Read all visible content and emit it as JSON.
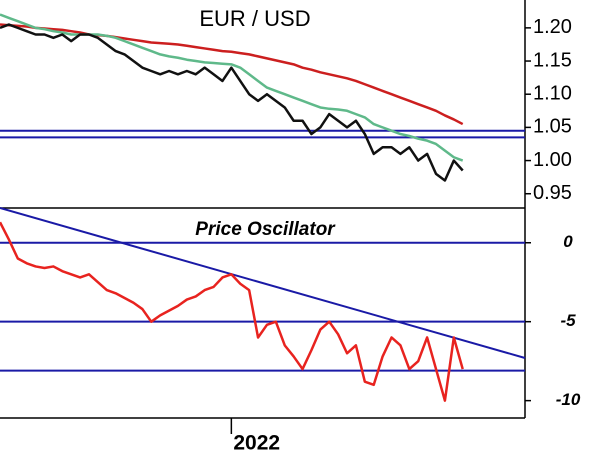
{
  "chart_data": [
    {
      "type": "line",
      "title": "EUR / USD",
      "x": [
        0,
        1,
        2,
        3,
        4,
        5,
        6,
        7,
        8,
        9,
        10,
        11,
        12,
        13,
        14,
        15,
        16,
        17,
        18,
        19,
        20,
        21,
        22,
        23,
        24,
        25,
        26,
        27,
        28,
        29,
        30,
        31,
        32,
        33,
        34,
        35,
        36,
        37,
        38,
        39,
        40,
        41,
        42,
        43,
        44,
        45,
        46,
        47,
        48,
        49,
        50,
        51,
        52
      ],
      "xlim": [
        0,
        59
      ],
      "ylim": [
        0.93,
        1.242
      ],
      "yticks": [
        {
          "value": 1.2,
          "label": "1.20"
        },
        1.15,
        {
          "value": 1.1,
          "label": "1.10"
        },
        1.05,
        {
          "value": 1,
          "label": "1.00"
        },
        0.95
      ],
      "hlines": {
        "color": "#1a1aa6",
        "values": [
          1.045,
          1.035
        ]
      },
      "series": [
        {
          "color": "#cc1f1f",
          "values": [
            1.205,
            1.204,
            1.203,
            1.202,
            1.2,
            1.199,
            1.198,
            1.197,
            1.195,
            1.193,
            1.19,
            1.189,
            1.188,
            1.186,
            1.184,
            1.182,
            1.18,
            1.178,
            1.177,
            1.176,
            1.175,
            1.173,
            1.171,
            1.169,
            1.167,
            1.165,
            1.164,
            1.162,
            1.16,
            1.157,
            1.154,
            1.151,
            1.148,
            1.145,
            1.14,
            1.137,
            1.133,
            1.13,
            1.127,
            1.124,
            1.12,
            1.115,
            1.11,
            1.105,
            1.1,
            1.095,
            1.09,
            1.085,
            1.08,
            1.075,
            1.068,
            1.062,
            1.055
          ]
        },
        {
          "color": "#5fb98a",
          "values": [
            1.22,
            1.215,
            1.21,
            1.205,
            1.2,
            1.198,
            1.195,
            1.193,
            1.19,
            1.19,
            1.19,
            1.19,
            1.188,
            1.185,
            1.18,
            1.175,
            1.17,
            1.165,
            1.16,
            1.157,
            1.155,
            1.152,
            1.15,
            1.148,
            1.147,
            1.146,
            1.145,
            1.14,
            1.13,
            1.12,
            1.11,
            1.105,
            1.1,
            1.095,
            1.09,
            1.085,
            1.08,
            1.078,
            1.077,
            1.075,
            1.07,
            1.065,
            1.055,
            1.05,
            1.045,
            1.04,
            1.037,
            1.033,
            1.03,
            1.025,
            1.015,
            1.005,
            1.0
          ]
        },
        {
          "color": "#111111",
          "values": [
            1.2,
            1.205,
            1.2,
            1.195,
            1.19,
            1.19,
            1.185,
            1.19,
            1.18,
            1.19,
            1.19,
            1.185,
            1.175,
            1.165,
            1.16,
            1.15,
            1.14,
            1.135,
            1.13,
            1.135,
            1.13,
            1.135,
            1.13,
            1.14,
            1.13,
            1.12,
            1.14,
            1.12,
            1.1,
            1.09,
            1.1,
            1.09,
            1.08,
            1.06,
            1.06,
            1.04,
            1.05,
            1.07,
            1.06,
            1.05,
            1.06,
            1.04,
            1.01,
            1.02,
            1.02,
            1.01,
            1.02,
            1.0,
            1.01,
            0.98,
            0.97,
            1.0,
            0.985
          ]
        }
      ]
    },
    {
      "type": "line",
      "title": "Price Oscillator",
      "x": [
        0,
        1,
        2,
        3,
        4,
        5,
        6,
        7,
        8,
        9,
        10,
        11,
        12,
        13,
        14,
        15,
        16,
        17,
        18,
        19,
        20,
        21,
        22,
        23,
        24,
        25,
        26,
        27,
        28,
        29,
        30,
        31,
        32,
        33,
        34,
        35,
        36,
        37,
        38,
        39,
        40,
        41,
        42,
        43,
        44,
        45,
        46,
        47,
        48,
        49,
        50,
        51,
        52
      ],
      "xlim": [
        0,
        59
      ],
      "ylim": [
        -11.1,
        2.2
      ],
      "yticks": [
        0,
        -5,
        -10
      ],
      "xticks": [
        {
          "value": 26,
          "label": "2022"
        }
      ],
      "hlines": {
        "color": "#1a1aa6",
        "values": [
          0,
          -5,
          -8.1
        ]
      },
      "trendline": {
        "color": "#1a1aa6",
        "x": [
          0,
          59
        ],
        "values": [
          2.2,
          -7.3
        ]
      },
      "series": [
        {
          "color": "#e8231f",
          "values": [
            1.3,
            0.2,
            -1.0,
            -1.3,
            -1.5,
            -1.6,
            -1.5,
            -1.8,
            -2.0,
            -2.2,
            -2.0,
            -2.5,
            -3.0,
            -3.2,
            -3.5,
            -3.8,
            -4.2,
            -5.0,
            -4.6,
            -4.3,
            -4.0,
            -3.6,
            -3.4,
            -3.0,
            -2.8,
            -2.2,
            -2.0,
            -2.6,
            -3.0,
            -6.0,
            -5.2,
            -5.0,
            -6.5,
            -7.2,
            -8.0,
            -6.8,
            -5.5,
            -5.0,
            -5.8,
            -7.0,
            -6.5,
            -8.8,
            -9.0,
            -7.2,
            -6.0,
            -6.5,
            -8.0,
            -7.5,
            -6.0,
            -8.0,
            -10.0,
            -6.0,
            -8.0
          ]
        }
      ]
    }
  ]
}
